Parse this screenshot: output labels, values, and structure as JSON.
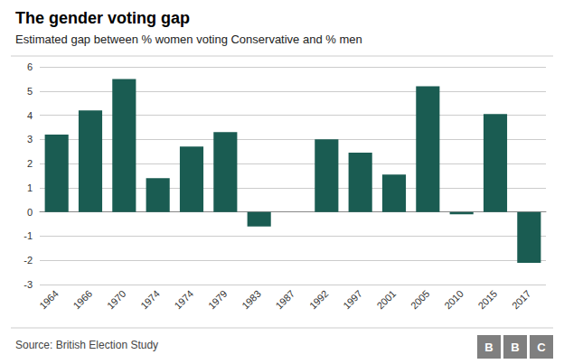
{
  "chart_data": {
    "type": "bar",
    "title": "The gender voting gap",
    "subtitle": "Estimated gap between % women voting Conservative and % men",
    "source": "Source: British Election Study",
    "annotations": [
      "B",
      "B",
      "C"
    ],
    "categories": [
      "1964",
      "1966",
      "1970",
      "1974",
      "1974",
      "1979",
      "1983",
      "1987",
      "1992",
      "1997",
      "2001",
      "2005",
      "2010",
      "2015",
      "2017"
    ],
    "values": [
      3.2,
      4.2,
      5.5,
      1.4,
      2.7,
      3.3,
      -0.6,
      0.0,
      3.0,
      2.45,
      1.55,
      5.2,
      -0.1,
      4.05,
      -2.1
    ],
    "color": "#1a5c52",
    "ylim": [
      -3,
      6
    ],
    "yticks": [
      -3,
      -2,
      -1,
      0,
      1,
      2,
      3,
      4,
      5,
      6
    ],
    "grid": true
  }
}
